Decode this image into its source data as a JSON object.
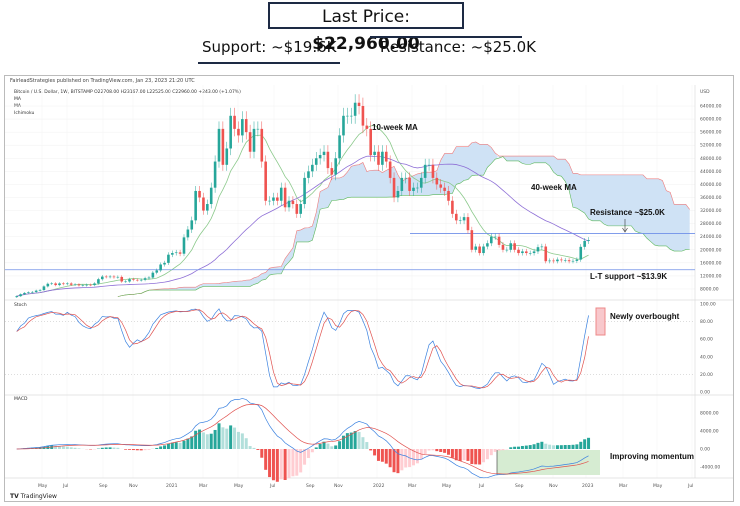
{
  "header": {
    "last_price_label": "Last Price: ",
    "last_price_value": "$22,960.00",
    "support": "Support: ~$19.6K",
    "resistance": "Resistance: ~$25.0K"
  },
  "published": "FairleadStrategies published on TradingView.com, Jan 23, 2023 21:20 UTC",
  "legend": {
    "symbol": "Bitcoin / U.S. Dollar, 1W, BITSTAMP  O22708.00  H23167.00  L22525.00  C22960.00  +243.00 (+1.07%)",
    "ma1": "MA",
    "ma2": "MA",
    "ichimoku": "Ichimoku"
  },
  "pane_labels": {
    "stoch": "Stoch",
    "macd": "MACD"
  },
  "footer": {
    "logo": "TradingView"
  },
  "chart_data": [
    {
      "type": "candlestick",
      "currency": "USD",
      "interval": "1W",
      "ylim": [
        8000,
        64000
      ],
      "yticks": [
        "64000.00",
        "60000.00",
        "56000.00",
        "52000.00",
        "48000.00",
        "44000.00",
        "40000.00",
        "36000.00",
        "32000.00",
        "28000.00",
        "24000.00",
        "20000.00",
        "16000.00",
        "12000.00",
        "8000.00"
      ],
      "xticks": [
        "May",
        "Jul",
        "Sep",
        "Nov",
        "2021",
        "Mar",
        "May",
        "Jul",
        "Sep",
        "Nov",
        "2022",
        "Mar",
        "May",
        "Jul",
        "Sep",
        "Nov",
        "2023",
        "Mar",
        "May",
        "Jul"
      ],
      "weekly_closes": [
        5800,
        6400,
        6800,
        7000,
        7100,
        7500,
        7700,
        8800,
        9600,
        9700,
        9200,
        9700,
        9500,
        9700,
        9300,
        9400,
        9100,
        9100,
        9300,
        9200,
        9700,
        11000,
        11800,
        11700,
        11800,
        11600,
        11700,
        10300,
        10300,
        11000,
        10800,
        10700,
        10800,
        11300,
        11500,
        13000,
        13700,
        15500,
        16000,
        18500,
        19000,
        19200,
        18800,
        23800,
        26200,
        29000,
        38000,
        36000,
        32000,
        34000,
        39000,
        47000,
        57000,
        46000,
        51000,
        61000,
        57000,
        55000,
        60000,
        56000,
        50000,
        57000,
        57000,
        47000,
        35000,
        35000,
        36000,
        35000,
        39000,
        33000,
        35000,
        34000,
        31000,
        34000,
        42000,
        44000,
        46000,
        48000,
        49000,
        50000,
        45000,
        43000,
        48000,
        55000,
        61000,
        61000,
        61000,
        65000,
        64000,
        58000,
        57000,
        49000,
        50000,
        46000,
        50000,
        47000,
        42000,
        36000,
        38000,
        42000,
        42000,
        38000,
        39000,
        39000,
        42000,
        46000,
        46000,
        42000,
        40000,
        39000,
        38000,
        35000,
        31000,
        29000,
        29000,
        30000,
        26000,
        20000,
        21000,
        19000,
        21000,
        22000,
        24000,
        24000,
        21500,
        20000,
        20000,
        22000,
        20000,
        19000,
        19500,
        19000,
        19000,
        19500,
        20800,
        21000,
        16500,
        16700,
        16500,
        17000,
        16800,
        16800,
        16500,
        16600,
        17000,
        20900,
        22700,
        22960
      ],
      "series": [
        {
          "name": "10-week MA"
        },
        {
          "name": "40-week MA"
        },
        {
          "name": "Ichimoku"
        }
      ],
      "annotations": {
        "ma10": "10-week MA",
        "ma40": "40-week MA",
        "resistance": "Resistance ~$25.0K",
        "support": "L-T support ~$13.9K"
      },
      "levels": {
        "resistance": 25000,
        "support": 13900
      }
    },
    {
      "type": "line",
      "name": "Stoch",
      "ylim": [
        0,
        100
      ],
      "yticks": [
        "100.00",
        "80.00",
        "60.00",
        "40.00",
        "20.00",
        "0.00"
      ],
      "annotation": "Newly overbought"
    },
    {
      "type": "line",
      "name": "MACD",
      "ylim": [
        -4000,
        8000
      ],
      "yticks": [
        "8000.00",
        "4000.00",
        "0.00",
        "-4000.00"
      ],
      "annotation": "Improving momentum"
    }
  ],
  "colors": {
    "up": "#26a69a",
    "down": "#ef5350",
    "ma10": "#8bc98b",
    "ma40": "#8e6fd6",
    "cloud": "#cfe2f5",
    "cloud_top": "#ef7b7b",
    "cloud_bot": "#5cb85c",
    "level": "#6f8fe8",
    "k": "#3b82e0",
    "d": "#e0524f",
    "box_pink": "#f8c8cc",
    "box_green": "#d6ecd2"
  }
}
